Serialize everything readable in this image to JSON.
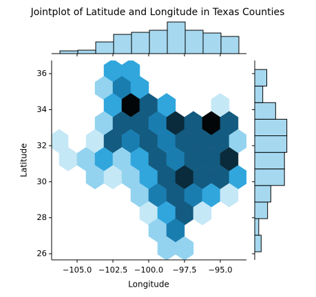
{
  "chart_data": {
    "type": "hexbin",
    "title": "Jointplot of Latitude and Longitude in Texas Counties",
    "xlabel": "Longitude",
    "ylabel": "Latitude",
    "xlim": [
      -106.78,
      -93.17
    ],
    "ylim": [
      25.66,
      36.73
    ],
    "xticks": [
      {
        "value": -105,
        "label": "−105.0"
      },
      {
        "value": -102.5,
        "label": "−102.5"
      },
      {
        "value": -100,
        "label": "−100.0"
      },
      {
        "value": -97.5,
        "label": "−97.5"
      },
      {
        "value": -95,
        "label": "−95.0"
      }
    ],
    "yticks": [
      26,
      28,
      30,
      32,
      34,
      36
    ],
    "cmap": [
      "#c5e8f6",
      "#93d3ef",
      "#31a6dd",
      "#1a7db0",
      "#135b80",
      "#0a2b3b",
      "#020608"
    ],
    "cells": [
      {
        "x": -102.5,
        "y": 36.15,
        "count": 3
      },
      {
        "x": -101.25,
        "y": 36.15,
        "count": 3
      },
      {
        "x": -103.125,
        "y": 35.2,
        "count": 2
      },
      {
        "x": -101.875,
        "y": 35.2,
        "count": 4
      },
      {
        "x": -100.625,
        "y": 35.2,
        "count": 3
      },
      {
        "x": -102.5,
        "y": 34.25,
        "count": 3
      },
      {
        "x": -101.25,
        "y": 34.25,
        "count": 7
      },
      {
        "x": -100,
        "y": 34.25,
        "count": 5
      },
      {
        "x": -98.75,
        "y": 34.25,
        "count": 3
      },
      {
        "x": -95,
        "y": 34.25,
        "count": 1
      },
      {
        "x": -103.125,
        "y": 33.25,
        "count": 2
      },
      {
        "x": -101.875,
        "y": 33.25,
        "count": 5
      },
      {
        "x": -100.625,
        "y": 33.25,
        "count": 5
      },
      {
        "x": -99.375,
        "y": 33.25,
        "count": 4
      },
      {
        "x": -98.125,
        "y": 33.25,
        "count": 6
      },
      {
        "x": -96.875,
        "y": 33.25,
        "count": 5
      },
      {
        "x": -95.625,
        "y": 33.25,
        "count": 7
      },
      {
        "x": -94.375,
        "y": 33.25,
        "count": 5
      },
      {
        "x": -106.25,
        "y": 32.25,
        "count": 1
      },
      {
        "x": -103.75,
        "y": 32.25,
        "count": 1
      },
      {
        "x": -102.5,
        "y": 32.25,
        "count": 5
      },
      {
        "x": -101.25,
        "y": 32.25,
        "count": 4
      },
      {
        "x": -100,
        "y": 32.25,
        "count": 5
      },
      {
        "x": -98.75,
        "y": 32.25,
        "count": 4
      },
      {
        "x": -97.5,
        "y": 32.25,
        "count": 5
      },
      {
        "x": -96.25,
        "y": 32.25,
        "count": 5
      },
      {
        "x": -95,
        "y": 32.25,
        "count": 5
      },
      {
        "x": -93.75,
        "y": 32.25,
        "count": 2
      },
      {
        "x": -105.625,
        "y": 31.25,
        "count": 1
      },
      {
        "x": -104.375,
        "y": 31.25,
        "count": 2
      },
      {
        "x": -103.125,
        "y": 31.25,
        "count": 3
      },
      {
        "x": -101.875,
        "y": 31.25,
        "count": 2
      },
      {
        "x": -100.625,
        "y": 31.25,
        "count": 3
      },
      {
        "x": -99.375,
        "y": 31.25,
        "count": 5
      },
      {
        "x": -98.125,
        "y": 31.25,
        "count": 4
      },
      {
        "x": -96.875,
        "y": 31.25,
        "count": 5
      },
      {
        "x": -95.625,
        "y": 31.25,
        "count": 5
      },
      {
        "x": -94.375,
        "y": 31.25,
        "count": 6
      },
      {
        "x": -103.75,
        "y": 30.25,
        "count": 2
      },
      {
        "x": -102.5,
        "y": 30.25,
        "count": 1
      },
      {
        "x": -101.25,
        "y": 30.25,
        "count": 2
      },
      {
        "x": -100,
        "y": 30.25,
        "count": 3
      },
      {
        "x": -98.75,
        "y": 30.25,
        "count": 5
      },
      {
        "x": -97.5,
        "y": 30.25,
        "count": 6
      },
      {
        "x": -96.25,
        "y": 30.25,
        "count": 5
      },
      {
        "x": -95,
        "y": 30.25,
        "count": 5
      },
      {
        "x": -93.75,
        "y": 30.25,
        "count": 3
      },
      {
        "x": -100.625,
        "y": 29.25,
        "count": 2
      },
      {
        "x": -99.375,
        "y": 29.25,
        "count": 4
      },
      {
        "x": -98.125,
        "y": 29.25,
        "count": 5
      },
      {
        "x": -96.875,
        "y": 29.25,
        "count": 4
      },
      {
        "x": -95.625,
        "y": 29.25,
        "count": 3
      },
      {
        "x": -94.375,
        "y": 29.25,
        "count": 1
      },
      {
        "x": -100,
        "y": 28.25,
        "count": 1
      },
      {
        "x": -98.75,
        "y": 28.25,
        "count": 3
      },
      {
        "x": -97.5,
        "y": 28.25,
        "count": 5
      },
      {
        "x": -96.25,
        "y": 28.25,
        "count": 1
      },
      {
        "x": -99.375,
        "y": 27.3,
        "count": 2
      },
      {
        "x": -98.125,
        "y": 27.3,
        "count": 4
      },
      {
        "x": -98.75,
        "y": 26.3,
        "count": 2
      },
      {
        "x": -97.5,
        "y": 26.3,
        "count": 2
      }
    ],
    "marginal_x": {
      "color": "#a6d9f0",
      "bins": [
        -106.2,
        -104.95,
        -103.7,
        -102.45,
        -101.2,
        -99.95,
        -98.7,
        -97.45,
        -96.2,
        -94.95,
        -93.7
      ],
      "counts": [
        4,
        5,
        17,
        28,
        31,
        34,
        46,
        34,
        30,
        25
      ],
      "ylim": [
        0,
        48
      ]
    },
    "marginal_y": {
      "color": "#a6d9f0",
      "bins": [
        26.11,
        27.03,
        27.95,
        28.87,
        29.79,
        30.71,
        31.63,
        32.55,
        33.47,
        34.39,
        35.31,
        36.23
      ],
      "counts": [
        8,
        5,
        16,
        20,
        37,
        37,
        40,
        40,
        26,
        10,
        15
      ],
      "xlim": [
        0,
        42
      ]
    }
  }
}
